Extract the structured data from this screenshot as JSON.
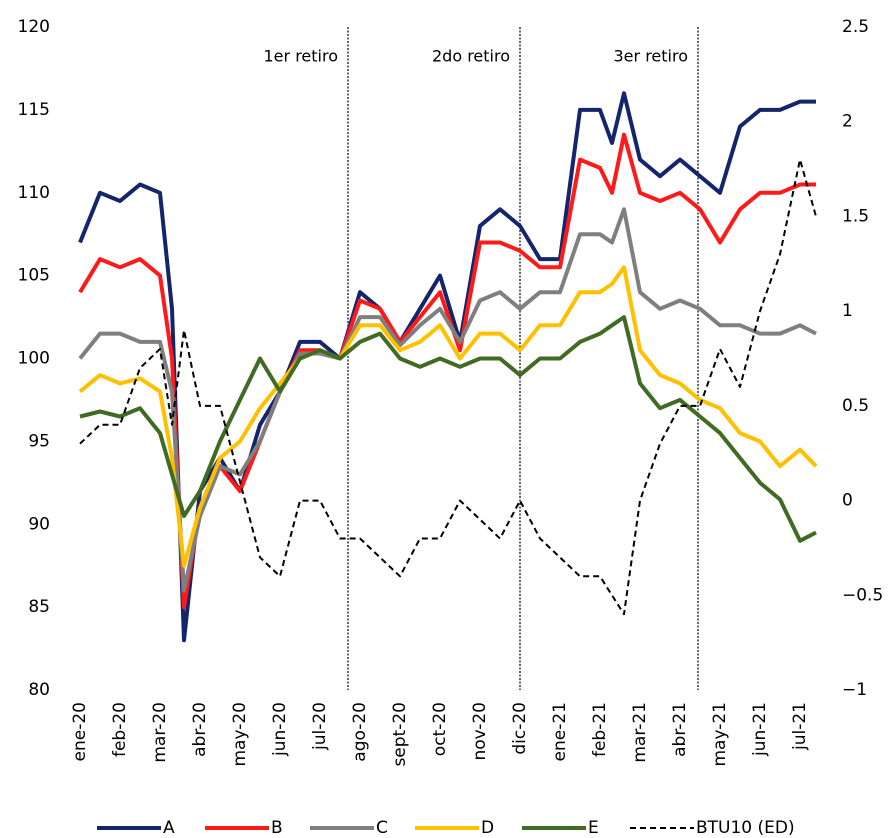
{
  "chart_data": {
    "type": "line",
    "x": [
      0,
      0.5,
      1,
      1.5,
      2,
      2.3,
      2.6,
      3,
      3.5,
      4,
      4.5,
      5,
      5.5,
      6,
      6.5,
      7,
      7.5,
      8,
      8.5,
      9,
      9.5,
      10,
      10.5,
      11,
      11.5,
      12,
      12.5,
      13,
      13.3,
      13.6,
      14,
      14.5,
      15,
      15.5,
      16,
      16.5,
      17,
      17.5,
      18,
      18.4
    ],
    "xlim": [
      0,
      18.5
    ],
    "xticks": [
      {
        "value": 0,
        "label": "ene-20"
      },
      {
        "value": 1,
        "label": "feb-20"
      },
      {
        "value": 2,
        "label": "mar-20"
      },
      {
        "value": 3,
        "label": "abr-20"
      },
      {
        "value": 4,
        "label": "may-20"
      },
      {
        "value": 5,
        "label": "jun-20"
      },
      {
        "value": 6,
        "label": "jul-20"
      },
      {
        "value": 7,
        "label": "ago-20"
      },
      {
        "value": 8,
        "label": "sept-20"
      },
      {
        "value": 9,
        "label": "oct-20"
      },
      {
        "value": 10,
        "label": "nov-20"
      },
      {
        "value": 11,
        "label": "dic-20"
      },
      {
        "value": 12,
        "label": "ene-21"
      },
      {
        "value": 13,
        "label": "feb-21"
      },
      {
        "value": 14,
        "label": "mar-21"
      },
      {
        "value": 15,
        "label": "abr-21"
      },
      {
        "value": 16,
        "label": "may-21"
      },
      {
        "value": 17,
        "label": "jun-21"
      },
      {
        "value": 18,
        "label": "jul-21"
      }
    ],
    "ylim": [
      80,
      120
    ],
    "yticks": [
      80,
      85,
      90,
      95,
      100,
      105,
      110,
      115,
      120
    ],
    "y2lim": [
      -1,
      2.5
    ],
    "y2ticks": [
      {
        "value": -1,
        "label": "−1"
      },
      {
        "value": -0.5,
        "label": "−0.5"
      },
      0,
      0.5,
      1,
      1.5,
      2,
      2.5
    ],
    "vlines": [
      {
        "x": 6.7,
        "label": "1er retiro"
      },
      {
        "x": 11,
        "label": "2do retiro"
      },
      {
        "x": 15.45,
        "label": "3er retiro"
      }
    ],
    "series": [
      {
        "name": "A",
        "color": "#14256b",
        "values": [
          107,
          110,
          109.5,
          110.5,
          110,
          103,
          83,
          92,
          94,
          92,
          96,
          98,
          101,
          101,
          100,
          104,
          103,
          101,
          103,
          105,
          101,
          108,
          109,
          108,
          106,
          106,
          115,
          115,
          113,
          116,
          112,
          111,
          112,
          111,
          110,
          114,
          115,
          115,
          115.5,
          115.5
        ]
      },
      {
        "name": "B",
        "color": "#ff1a1a",
        "values": [
          104,
          106,
          105.5,
          106,
          105,
          100,
          85,
          91,
          93.5,
          92,
          95,
          98,
          100.5,
          100.5,
          100,
          103.5,
          103,
          101,
          102.5,
          104,
          100.5,
          107,
          107,
          106.5,
          105.5,
          105.5,
          112,
          111.5,
          110,
          113.5,
          110,
          109.5,
          110,
          109,
          107,
          109,
          110,
          110,
          110.5,
          110.5
        ]
      },
      {
        "name": "C",
        "color": "#7f7f7f",
        "values": [
          100,
          101.5,
          101.5,
          101,
          101,
          98,
          86,
          90.5,
          93.5,
          93,
          95,
          98,
          100.3,
          100.3,
          100,
          102.5,
          102.5,
          100.8,
          102,
          103,
          101,
          103.5,
          104,
          103,
          104,
          104,
          107.5,
          107.5,
          107,
          109,
          104,
          103,
          103.5,
          103,
          102,
          102,
          101.5,
          101.5,
          102,
          101.5
        ]
      },
      {
        "name": "D",
        "color": "#ffc000",
        "values": [
          98,
          99,
          98.5,
          98.8,
          98,
          94,
          87.5,
          91,
          94,
          95,
          97,
          98.5,
          100,
          100.5,
          100,
          102,
          102,
          100.5,
          101,
          102,
          100,
          101.5,
          101.5,
          100.5,
          102,
          102,
          104,
          104,
          104.5,
          105.5,
          100.5,
          99,
          98.5,
          97.5,
          97,
          95.5,
          95,
          93.5,
          94.5,
          93.5
        ]
      },
      {
        "name": "E",
        "color": "#3f6b22",
        "values": [
          96.5,
          96.8,
          96.5,
          97,
          95.5,
          93,
          90.5,
          92,
          95,
          97.5,
          100,
          98,
          100,
          100.5,
          100,
          101,
          101.5,
          100,
          99.5,
          100,
          99.5,
          100,
          100,
          99,
          100,
          100,
          101,
          101.5,
          102,
          102.5,
          98.5,
          97,
          97.5,
          96.5,
          95.5,
          94,
          92.5,
          91.5,
          89,
          89.5
        ]
      },
      {
        "name": "BTU10 (ED)",
        "color": "#000000",
        "axis": "y2",
        "dashed": true,
        "values": [
          0.3,
          0.4,
          0.4,
          0.7,
          0.8,
          0.4,
          0.9,
          0.5,
          0.5,
          0.1,
          -0.3,
          -0.4,
          0.0,
          0.0,
          -0.2,
          -0.2,
          -0.3,
          -0.4,
          -0.2,
          -0.2,
          0.0,
          -0.1,
          -0.2,
          0.0,
          -0.2,
          -0.3,
          -0.4,
          -0.4,
          -0.5,
          -0.6,
          0.0,
          0.3,
          0.5,
          0.5,
          0.8,
          0.6,
          1.0,
          1.3,
          1.8,
          1.5
        ]
      }
    ]
  }
}
